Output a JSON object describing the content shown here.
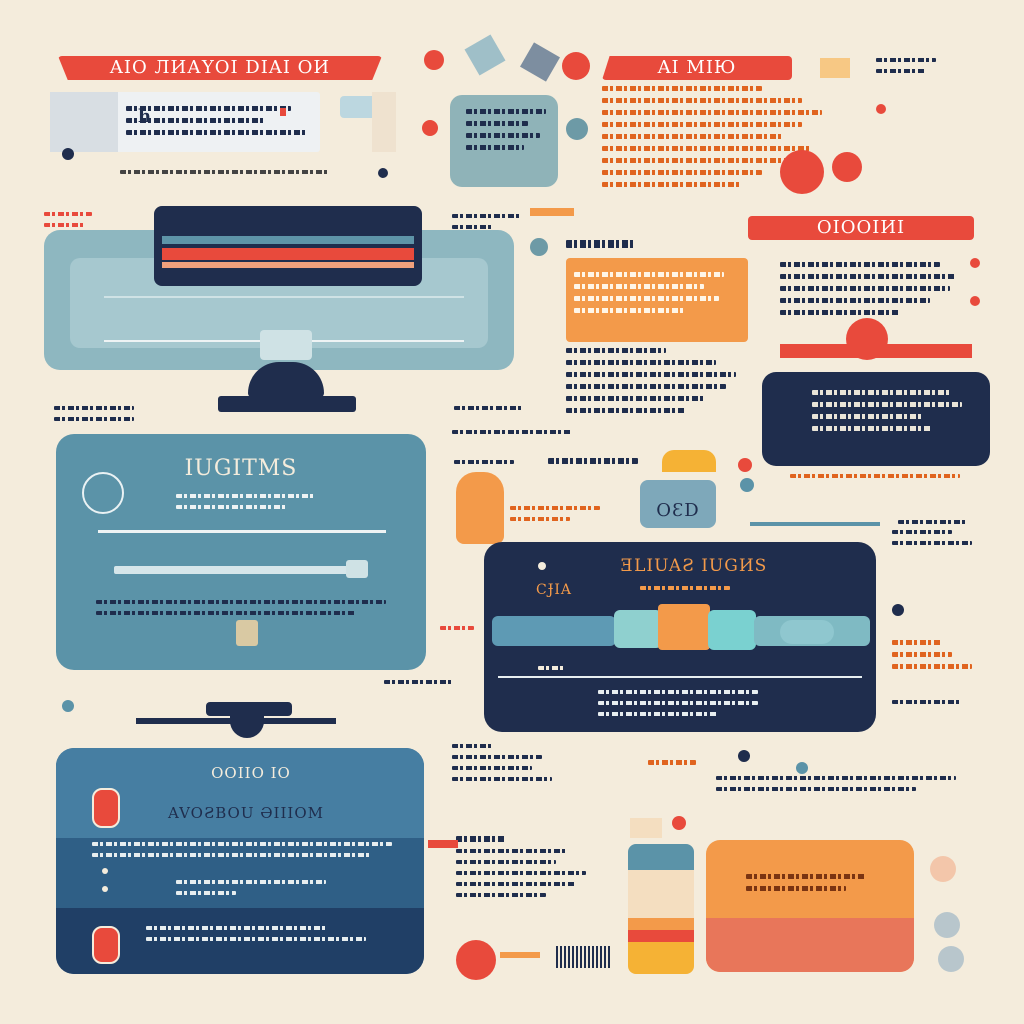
{
  "header": {
    "left_ribbon": "AIO ЛИАYOI DIAI OИ",
    "right_ribbon": "AI MIЮ",
    "mid_ribbon": "OIOOIИI"
  },
  "panel_login": {
    "title": "IUGITMS"
  },
  "panel_dark": {
    "title": "ƎLIUAƧ IUGИS",
    "side_label": "CɈIA"
  },
  "panel_bottom": {
    "top_text": "OOIIO IO",
    "subtitle": "AVOƧBOU ƏIIIOM"
  },
  "cloud_label": "OƐD",
  "colors": {
    "background": "#f4ecdc",
    "red": "#e84a3c",
    "teal": "#5b93a8",
    "navy": "#1f2d4d",
    "orange": "#f39a4a",
    "aqua": "#7ad1d0"
  }
}
